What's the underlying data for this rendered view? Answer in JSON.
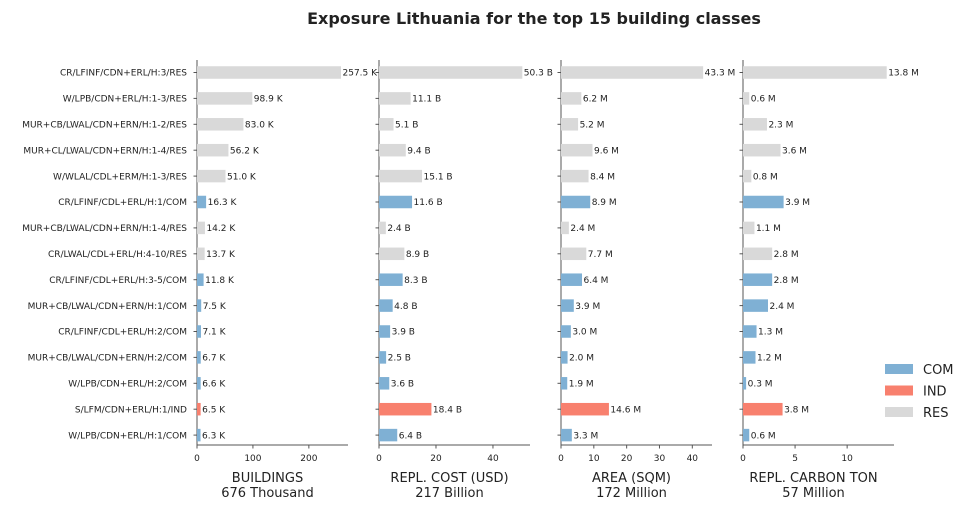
{
  "chart_data": {
    "type": "bar",
    "orientation": "horizontal",
    "title": "Exposure Lithuania for the top 15 building classes",
    "categories": [
      "CR/LFINF/CDN+ERL/H:3/RES",
      "W/LPB/CDN+ERL/H:1-3/RES",
      "MUR+CB/LWAL/CDN+ERN/H:1-2/RES",
      "MUR+CL/LWAL/CDN+ERN/H:1-4/RES",
      "W/WLAL/CDL+ERM/H:1-3/RES",
      "CR/LFINF/CDL+ERL/H:1/COM",
      "MUR+CB/LWAL/CDN+ERN/H:1-4/RES",
      "CR/LWAL/CDL+ERL/H:4-10/RES",
      "CR/LFINF/CDL+ERL/H:3-5/COM",
      "MUR+CB/LWAL/CDN+ERN/H:1/COM",
      "CR/LFINF/CDL+ERL/H:2/COM",
      "MUR+CB/LWAL/CDN+ERN/H:2/COM",
      "W/LPB/CDN+ERL/H:2/COM",
      "S/LFM/CDN+ERL/H:1/IND",
      "W/LPB/CDN+ERL/H:1/COM"
    ],
    "occupancy": [
      "RES",
      "RES",
      "RES",
      "RES",
      "RES",
      "COM",
      "RES",
      "RES",
      "COM",
      "COM",
      "COM",
      "COM",
      "COM",
      "IND",
      "COM"
    ],
    "legend": {
      "placement": "bottom-right",
      "items": [
        {
          "key": "COM",
          "label": "COM",
          "color": "#7fb0d4"
        },
        {
          "key": "IND",
          "label": "IND",
          "color": "#f8806e"
        },
        {
          "key": "RES",
          "label": "RES",
          "color": "#d9d9d9"
        }
      ]
    },
    "panels": [
      {
        "xlabel": "BUILDINGS",
        "total": "676 Thousand",
        "xlim": [
          0,
          270
        ],
        "ticks": [
          0,
          100,
          200
        ],
        "tick_labels": [
          "0",
          "100",
          "200"
        ],
        "values": [
          257.5,
          98.9,
          83.0,
          56.2,
          51.0,
          16.3,
          14.2,
          13.7,
          11.8,
          7.5,
          7.1,
          6.7,
          6.6,
          6.5,
          6.3
        ],
        "value_labels": [
          "257.5 K",
          "98.9 K",
          "83.0 K",
          "56.2 K",
          "51.0 K",
          "16.3 K",
          "14.2 K",
          "13.7 K",
          "11.8 K",
          "7.5 K",
          "7.1 K",
          "6.7 K",
          "6.6 K",
          "6.5 K",
          "6.3 K"
        ]
      },
      {
        "xlabel": "REPL. COST (USD)",
        "total": "217 Billion",
        "xlim": [
          0,
          53
        ],
        "ticks": [
          0,
          20,
          40
        ],
        "tick_labels": [
          "0",
          "20",
          "40"
        ],
        "values": [
          50.3,
          11.1,
          5.1,
          9.4,
          15.1,
          11.6,
          2.4,
          8.9,
          8.3,
          4.8,
          3.9,
          2.5,
          3.6,
          18.4,
          6.4
        ],
        "value_labels": [
          "50.3 B",
          "11.1 B",
          "5.1 B",
          "9.4 B",
          "15.1 B",
          "11.6 B",
          "2.4 B",
          "8.9 B",
          "8.3 B",
          "4.8 B",
          "3.9 B",
          "2.5 B",
          "3.6 B",
          "18.4 B",
          "6.4 B"
        ]
      },
      {
        "xlabel": "AREA (SQM)",
        "total": "172 Million",
        "xlim": [
          0,
          46
        ],
        "ticks": [
          0,
          10,
          20,
          30,
          40
        ],
        "tick_labels": [
          "0",
          "10",
          "20",
          "30",
          "40"
        ],
        "values": [
          43.3,
          6.2,
          5.2,
          9.6,
          8.4,
          8.9,
          2.4,
          7.7,
          6.4,
          3.9,
          3.0,
          2.0,
          1.9,
          14.6,
          3.3
        ],
        "value_labels": [
          "43.3 M",
          "6.2 M",
          "5.2 M",
          "9.6 M",
          "8.4 M",
          "8.9 M",
          "2.4 M",
          "7.7 M",
          "6.4 M",
          "3.9 M",
          "3.0 M",
          "2.0 M",
          "1.9 M",
          "14.6 M",
          "3.3 M"
        ]
      },
      {
        "xlabel": "REPL. CARBON TON",
        "total": "57 Million",
        "xlim": [
          0,
          14.5
        ],
        "ticks": [
          0,
          5,
          10
        ],
        "tick_labels": [
          "0",
          "5",
          "10"
        ],
        "values": [
          13.8,
          0.6,
          2.3,
          3.6,
          0.8,
          3.9,
          1.1,
          2.8,
          2.8,
          2.4,
          1.3,
          1.2,
          0.3,
          3.8,
          0.6
        ],
        "value_labels": [
          "13.8 M",
          "0.6 M",
          "2.3 M",
          "3.6 M",
          "0.8 M",
          "3.9 M",
          "1.1 M",
          "2.8 M",
          "2.8 M",
          "2.4 M",
          "1.3 M",
          "1.2 M",
          "0.3 M",
          "3.8 M",
          "0.6 M"
        ]
      }
    ],
    "grid": false
  }
}
